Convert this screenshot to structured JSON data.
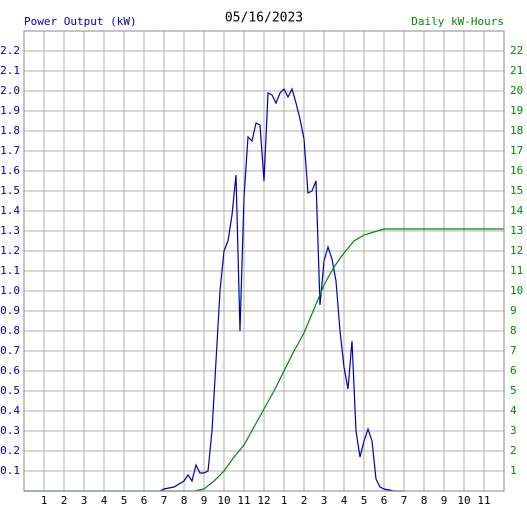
{
  "chart_data": {
    "type": "line",
    "title": "05/16/2023",
    "ylabel": "Power Output (kW)",
    "y2label": "Daily kW-Hours",
    "xlim": [
      0,
      24
    ],
    "xticks": [
      1,
      2,
      3,
      4,
      5,
      6,
      7,
      8,
      9,
      10,
      11,
      12,
      {
        "value": 13,
        "label": "1"
      },
      {
        "value": 14,
        "label": "2"
      },
      {
        "value": 15,
        "label": "3"
      },
      {
        "value": 16,
        "label": "4"
      },
      {
        "value": 17,
        "label": "5"
      },
      {
        "value": 18,
        "label": "6"
      },
      {
        "value": 19,
        "label": "7"
      },
      {
        "value": 20,
        "label": "8"
      },
      {
        "value": 21,
        "label": "9"
      },
      {
        "value": 22,
        "label": "10"
      },
      {
        "value": 23,
        "label": "11"
      }
    ],
    "ylim": [
      0,
      2.3
    ],
    "yticks": [
      0.1,
      0.2,
      0.3,
      0.4,
      0.5,
      0.6,
      0.7,
      0.8,
      0.9,
      {
        "value": 1,
        "label": "1.0"
      },
      1.1,
      1.2,
      1.3,
      1.4,
      1.5,
      1.6,
      1.7,
      1.8,
      1.9,
      {
        "value": 2,
        "label": "2.0"
      },
      2.1,
      2.2
    ],
    "y2lim": [
      0,
      23
    ],
    "y2ticks": [
      1,
      2,
      3,
      4,
      5,
      6,
      7,
      8,
      9,
      10,
      11,
      12,
      13,
      14,
      15,
      16,
      17,
      18,
      19,
      20,
      21,
      22
    ],
    "grid": true,
    "series": [
      {
        "color": "#0000b0",
        "x": [
          6.8,
          7.0,
          7.5,
          8.0,
          8.2,
          8.4,
          8.6,
          8.8,
          9.0,
          9.2,
          9.4,
          9.6,
          9.8,
          10.0,
          10.2,
          10.4,
          10.6,
          10.8,
          11.0,
          11.2,
          11.4,
          11.6,
          11.8,
          12.0,
          12.2,
          12.4,
          12.6,
          12.8,
          13.0,
          13.2,
          13.4,
          13.6,
          13.8,
          14.0,
          14.2,
          14.4,
          14.6,
          14.8,
          15.0,
          15.2,
          15.4,
          15.6,
          15.8,
          16.0,
          16.2,
          16.4,
          16.6,
          16.8,
          17.0,
          17.2,
          17.4,
          17.6,
          17.8,
          18.0,
          18.5,
          19.0
        ],
        "values": [
          0,
          0.01,
          0.02,
          0.05,
          0.08,
          0.05,
          0.13,
          0.09,
          0.09,
          0.1,
          0.3,
          0.65,
          1.0,
          1.2,
          1.25,
          1.38,
          1.58,
          0.8,
          1.47,
          1.77,
          1.75,
          1.84,
          1.83,
          1.55,
          1.99,
          1.98,
          1.94,
          1.99,
          2.01,
          1.97,
          2.01,
          1.94,
          1.86,
          1.76,
          1.49,
          1.5,
          1.55,
          0.93,
          1.15,
          1.22,
          1.16,
          1.05,
          0.8,
          0.62,
          0.51,
          0.75,
          0.3,
          0.17,
          0.25,
          0.31,
          0.25,
          0.06,
          0.02,
          0.01,
          0,
          0
        ]
      },
      {
        "color": "#008800",
        "axis": "y2",
        "x": [
          0,
          8.5,
          9.0,
          9.5,
          10.0,
          10.5,
          11.0,
          11.5,
          12.0,
          12.5,
          13.0,
          13.5,
          14.0,
          14.5,
          15.0,
          15.5,
          16.0,
          16.5,
          17.0,
          17.5,
          18.0,
          24.0
        ],
        "values": [
          0,
          0,
          0.1,
          0.5,
          1.0,
          1.7,
          2.3,
          3.2,
          4.1,
          5.0,
          6.0,
          7.0,
          7.9,
          9.1,
          10.3,
          11.2,
          11.9,
          12.5,
          12.8,
          12.95,
          13.1,
          13.1
        ]
      }
    ]
  }
}
